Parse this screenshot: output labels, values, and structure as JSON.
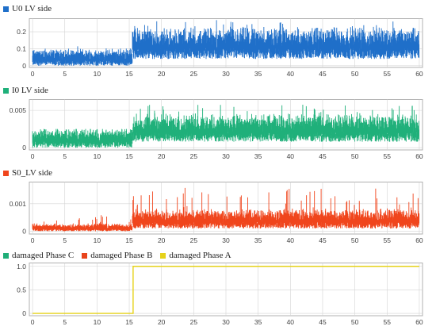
{
  "colors": {
    "u0": "#1f6fc9",
    "i0": "#1fb07a",
    "s0": "#f0451c",
    "phaseC": "#1fae78",
    "phaseB": "#e8441c",
    "phaseA": "#e6d21a",
    "grid": "#d4d4d4",
    "frame": "#b0b0b0"
  },
  "chart_data": [
    {
      "type": "line",
      "legend": [
        {
          "label": "U0 LV side",
          "color_key": "u0"
        }
      ],
      "x_range": [
        0,
        60
      ],
      "x_ticks": [
        "0",
        "5",
        "10",
        "15",
        "20",
        "25",
        "30",
        "35",
        "40",
        "45",
        "50",
        "55",
        "60"
      ],
      "y_ticks": [
        "0",
        "0.1",
        "0.2"
      ],
      "y_tick_values": [
        0,
        0.1,
        0.2
      ],
      "ylim": [
        -0.01,
        0.28
      ],
      "grid": true,
      "series": [
        {
          "color_key": "u0",
          "noise_segments": [
            {
              "x": [
                0,
                15.5
              ],
              "y": [
                0.0,
                0.07
              ],
              "peak": 0.12
            },
            {
              "x": [
                15.5,
                60
              ],
              "y": [
                0.04,
                0.17
              ],
              "peak": 0.27
            }
          ]
        }
      ]
    },
    {
      "type": "line",
      "legend": [
        {
          "label": "I0 LV side",
          "color_key": "i0"
        }
      ],
      "x_range": [
        0,
        60
      ],
      "x_ticks": [
        "0",
        "5",
        "10",
        "15",
        "20",
        "25",
        "30",
        "35",
        "40",
        "45",
        "50",
        "55",
        "60"
      ],
      "y_ticks": [
        "0",
        "0.005"
      ],
      "y_tick_values": [
        0,
        0.005
      ],
      "ylim": [
        -0.0003,
        0.0065
      ],
      "grid": true,
      "series": [
        {
          "color_key": "i0",
          "noise_segments": [
            {
              "x": [
                0,
                15.5
              ],
              "y": [
                0.0,
                0.0018
              ],
              "peak": 0.0025
            },
            {
              "x": [
                15.5,
                60
              ],
              "y": [
                0.0008,
                0.0034
              ],
              "peak": 0.0058
            }
          ]
        }
      ]
    },
    {
      "type": "line",
      "legend": [
        {
          "label": "S0_LV side",
          "color_key": "s0"
        }
      ],
      "x_range": [
        0,
        60
      ],
      "x_ticks": [
        "0",
        "5",
        "10",
        "15",
        "20",
        "25",
        "30",
        "35",
        "40",
        "45",
        "50",
        "55",
        "60"
      ],
      "y_ticks": [
        "0",
        "0.001"
      ],
      "y_tick_values": [
        0,
        0.001
      ],
      "ylim": [
        -0.0001,
        0.0018
      ],
      "grid": true,
      "series": [
        {
          "color_key": "s0",
          "noise_segments": [
            {
              "x": [
                0,
                15.5
              ],
              "y": [
                0.0,
                0.0002
              ],
              "peak": 0.0006
            },
            {
              "x": [
                15.5,
                60
              ],
              "y": [
                0.0001,
                0.0006
              ],
              "peak": 0.00165
            }
          ]
        }
      ]
    },
    {
      "type": "line",
      "legend": [
        {
          "label": "damaged Phase C",
          "color_key": "phaseC"
        },
        {
          "label": "damaged Phase B",
          "color_key": "phaseB"
        },
        {
          "label": "damaged Phase A",
          "color_key": "phaseA"
        }
      ],
      "x_range": [
        0,
        60
      ],
      "x_ticks": [
        "0",
        "5",
        "10",
        "15",
        "20",
        "25",
        "30",
        "35",
        "40",
        "45",
        "50",
        "55",
        "60"
      ],
      "y_ticks": [
        "0",
        "0.5",
        "1.0"
      ],
      "y_tick_values": [
        0,
        0.5,
        1.0
      ],
      "ylim": [
        -0.05,
        1.08
      ],
      "grid": true,
      "series": [
        {
          "color_key": "phaseA",
          "step": {
            "x": [
              0,
              15.6,
              15.6,
              60
            ],
            "y": [
              0,
              0,
              1,
              1
            ]
          }
        }
      ]
    }
  ]
}
